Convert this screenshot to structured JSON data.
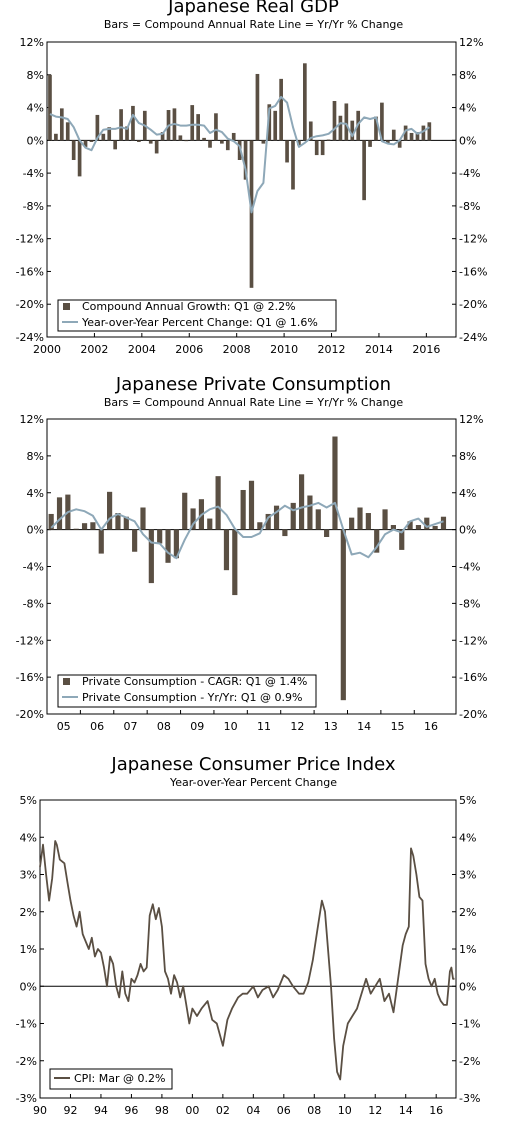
{
  "chart_data": [
    {
      "type": "bar",
      "title": "Japanese Real GDP",
      "subtitle": "Bars = Compound Annual Rate      Line = Yr/Yr % Change",
      "ylim": [
        -24,
        12
      ],
      "yticks": [
        "12%",
        "8%",
        "4%",
        "0%",
        "-4%",
        "-8%",
        "-12%",
        "-16%",
        "-20%",
        "-24%"
      ],
      "xlim": [
        2000,
        2017.25
      ],
      "xticks": [
        "2000",
        "2002",
        "2004",
        "2006",
        "2008",
        "2010",
        "2012",
        "2014",
        "2016"
      ],
      "legend": {
        "bar": "Compound Annual Growth: Q1 @ 2.2%",
        "line": "Year-over-Year Percent Change: Q1 @ 1.6%"
      },
      "colors": {
        "bar": "#5a4f43",
        "line": "#8ea8b8"
      },
      "series": [
        {
          "name": "Compound Annual Growth",
          "start": 2000,
          "values": [
            8.0,
            0.8,
            3.9,
            2.2,
            -2.4,
            -4.4,
            -0.8,
            -0.2,
            3.1,
            0.8,
            1.6,
            -1.1,
            3.8,
            1.7,
            4.2,
            -0.2,
            3.6,
            -0.4,
            -1.6,
            1.0,
            3.7,
            3.9,
            0.6,
            -0.1,
            4.3,
            3.2,
            0.3,
            -0.9,
            3.3,
            -0.4,
            -1.2,
            0.9,
            -2.4,
            -4.8,
            -18.0,
            8.1,
            -0.4,
            4.4,
            3.6,
            7.5,
            -2.7,
            -6.0,
            -0.6,
            9.4,
            2.3,
            -1.8,
            -1.8,
            0.1,
            4.8,
            3.0,
            4.5,
            2.4,
            3.6,
            -7.3,
            -0.8,
            2.9,
            4.6,
            -0.4,
            1.3,
            -0.9,
            1.8,
            0.9,
            1.0,
            1.8,
            2.2
          ]
        },
        {
          "name": "Year-over-Year Percent Change",
          "start": 2000,
          "values": [
            3.2,
            2.9,
            2.8,
            2.6,
            1.6,
            0.0,
            -0.9,
            -1.2,
            0.3,
            1.3,
            1.4,
            1.4,
            1.6,
            1.4,
            3.1,
            2.1,
            1.8,
            1.3,
            0.7,
            0.8,
            1.8,
            2.0,
            1.8,
            1.8,
            1.9,
            1.9,
            1.8,
            0.9,
            1.3,
            1.0,
            0.2,
            -0.1,
            -0.7,
            -3.6,
            -8.8,
            -6.2,
            -5.2,
            3.9,
            4.2,
            5.3,
            4.6,
            1.6,
            -0.8,
            -0.3,
            0.3,
            0.5,
            0.6,
            0.8,
            1.4,
            2.1,
            2.0,
            0.5,
            2.0,
            2.8,
            2.6,
            2.8,
            -0.1,
            -0.4,
            -0.5,
            0.0,
            1.2,
            1.4,
            0.8,
            1.1,
            1.6
          ]
        }
      ]
    },
    {
      "type": "bar",
      "title": "Japanese Private Consumption",
      "subtitle": "Bars = Compound Annual Rate      Line = Yr/Yr % Change",
      "ylim": [
        -20,
        12
      ],
      "yticks": [
        "12%",
        "8%",
        "4%",
        "0%",
        "-4%",
        "-8%",
        "-12%",
        "-16%",
        "-20%"
      ],
      "xlim": [
        2005,
        2017.25
      ],
      "xticks": [
        "05",
        "06",
        "07",
        "08",
        "09",
        "10",
        "11",
        "12",
        "13",
        "14",
        "15",
        "16"
      ],
      "legend": {
        "bar": "Private Consumption - CAGR: Q1 @ 1.4%",
        "line": "Private Consumption - Yr/Yr: Q1 @ 0.9%"
      },
      "colors": {
        "bar": "#5a4f43",
        "line": "#8ea8b8"
      },
      "series": [
        {
          "name": "Private Consumption - CAGR",
          "start": 2005,
          "values": [
            1.7,
            3.5,
            3.8,
            0.1,
            0.7,
            0.8,
            -2.6,
            4.1,
            1.8,
            1.4,
            -2.4,
            2.4,
            -5.8,
            -1.5,
            -3.6,
            -3.1,
            4.0,
            2.3,
            3.3,
            1.2,
            5.8,
            -4.4,
            -7.1,
            4.3,
            5.3,
            0.8,
            1.7,
            2.6,
            -0.7,
            2.9,
            6.0,
            3.7,
            2.2,
            -0.8,
            10.1,
            -18.5,
            1.3,
            2.4,
            1.8,
            -2.5,
            2.2,
            0.5,
            -2.2,
            0.9,
            0.5,
            1.3,
            0.4,
            1.4
          ]
        },
        {
          "name": "Private Consumption - Yr/Yr",
          "start": 2005,
          "values": [
            0.2,
            1.1,
            1.9,
            2.2,
            2.0,
            1.5,
            0.0,
            1.2,
            1.7,
            1.3,
            0.9,
            -0.5,
            -1.4,
            -1.5,
            -2.5,
            -3.1,
            -1.1,
            0.6,
            1.6,
            2.2,
            2.5,
            1.6,
            0.1,
            -0.8,
            -0.8,
            -0.4,
            1.3,
            1.9,
            2.6,
            2.1,
            2.4,
            2.6,
            2.9,
            2.4,
            2.9,
            0.0,
            -2.7,
            -2.5,
            -3.0,
            -1.9,
            -0.5,
            0.0,
            -0.3,
            0.9,
            1.2,
            0.3,
            0.6,
            0.9
          ]
        }
      ]
    },
    {
      "type": "line",
      "title": "Japanese Consumer Price Index",
      "subtitle": "Year-over-Year Percent Change",
      "ylim": [
        -3,
        5
      ],
      "yticks": [
        "5%",
        "4%",
        "3%",
        "2%",
        "1%",
        "0%",
        "-1%",
        "-2%",
        "-3%"
      ],
      "xlim": [
        1990,
        2017.3
      ],
      "xticks": [
        "90",
        "92",
        "94",
        "96",
        "98",
        "00",
        "02",
        "04",
        "06",
        "08",
        "10",
        "12",
        "14",
        "16"
      ],
      "legend": {
        "line": "CPI: Mar @ 0.2%"
      },
      "colors": {
        "line": "#5a4f43"
      },
      "series": [
        {
          "name": "CPI",
          "x": [
            1990.0,
            1990.2,
            1990.4,
            1990.6,
            1990.8,
            1991.0,
            1991.1,
            1991.3,
            1991.6,
            1991.8,
            1992.0,
            1992.2,
            1992.4,
            1992.6,
            1992.8,
            1993.0,
            1993.2,
            1993.4,
            1993.6,
            1993.8,
            1994.0,
            1994.2,
            1994.4,
            1994.6,
            1994.8,
            1995.0,
            1995.2,
            1995.4,
            1995.6,
            1995.8,
            1996.0,
            1996.2,
            1996.4,
            1996.6,
            1996.8,
            1997.0,
            1997.2,
            1997.4,
            1997.6,
            1997.8,
            1998.0,
            1998.2,
            1998.4,
            1998.6,
            1998.8,
            1999.0,
            1999.2,
            1999.4,
            1999.6,
            1999.8,
            2000.0,
            2000.3,
            2000.6,
            2001.0,
            2001.3,
            2001.6,
            2002.0,
            2002.3,
            2002.6,
            2003.0,
            2003.3,
            2003.6,
            2004.0,
            2004.3,
            2004.6,
            2005.0,
            2005.3,
            2005.6,
            2006.0,
            2006.3,
            2006.6,
            2007.0,
            2007.3,
            2007.6,
            2007.9,
            2008.2,
            2008.5,
            2008.7,
            2008.9,
            2009.1,
            2009.3,
            2009.5,
            2009.7,
            2009.9,
            2010.2,
            2010.5,
            2010.8,
            2011.1,
            2011.4,
            2011.7,
            2012.0,
            2012.3,
            2012.6,
            2012.9,
            2013.2,
            2013.5,
            2013.8,
            2014.0,
            2014.2,
            2014.35,
            2014.5,
            2014.7,
            2014.9,
            2015.1,
            2015.3,
            2015.5,
            2015.7,
            2015.9,
            2016.1,
            2016.3,
            2016.5,
            2016.7,
            2016.9,
            2017.0,
            2017.1,
            2017.2
          ],
          "values": [
            3.2,
            3.8,
            3.0,
            2.3,
            2.9,
            3.9,
            3.8,
            3.4,
            3.3,
            2.8,
            2.3,
            1.9,
            1.6,
            2.0,
            1.4,
            1.2,
            1.0,
            1.3,
            0.8,
            1.0,
            0.9,
            0.5,
            0.0,
            0.8,
            0.6,
            0.0,
            -0.3,
            0.4,
            -0.2,
            -0.4,
            0.2,
            0.1,
            0.3,
            0.6,
            0.4,
            0.5,
            1.9,
            2.2,
            1.8,
            2.1,
            1.6,
            0.4,
            0.2,
            -0.2,
            0.3,
            0.1,
            -0.3,
            0.0,
            -0.5,
            -1.0,
            -0.6,
            -0.8,
            -0.6,
            -0.4,
            -0.9,
            -1.0,
            -1.6,
            -0.9,
            -0.6,
            -0.3,
            -0.2,
            -0.2,
            0.0,
            -0.3,
            -0.1,
            0.0,
            -0.3,
            -0.1,
            0.3,
            0.2,
            0.0,
            -0.2,
            -0.2,
            0.1,
            0.7,
            1.5,
            2.3,
            2.0,
            1.0,
            0.0,
            -1.4,
            -2.3,
            -2.5,
            -1.6,
            -1.0,
            -0.8,
            -0.6,
            -0.2,
            0.2,
            -0.2,
            0.0,
            0.2,
            -0.4,
            -0.2,
            -0.7,
            0.2,
            1.1,
            1.4,
            1.6,
            3.7,
            3.5,
            3.0,
            2.4,
            2.3,
            0.6,
            0.2,
            0.0,
            0.2,
            -0.2,
            -0.4,
            -0.5,
            -0.5,
            0.4,
            0.5,
            0.2,
            0.2
          ]
        }
      ]
    }
  ]
}
